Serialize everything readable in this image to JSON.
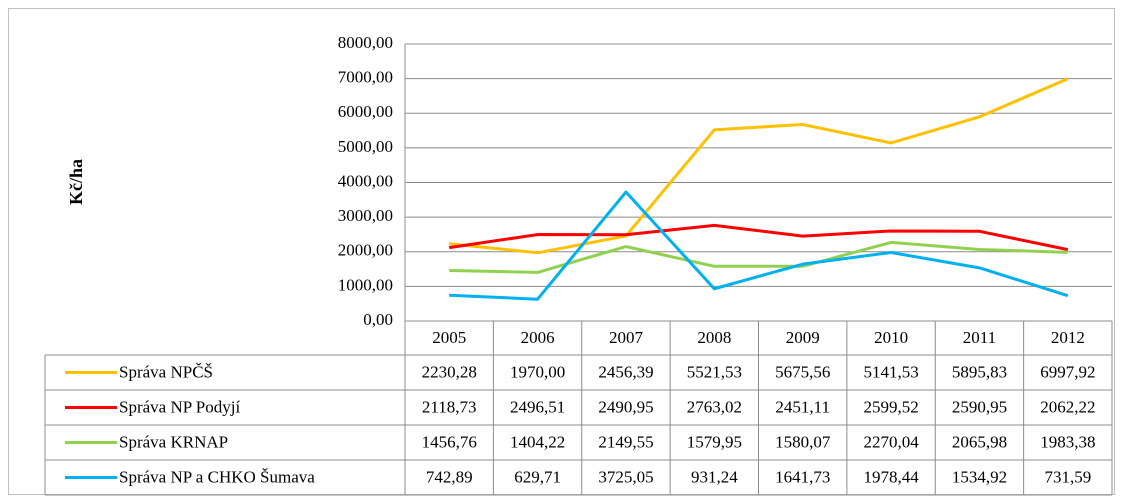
{
  "chart_data": {
    "type": "line",
    "y_label": "Kč/ha",
    "categories": [
      "2005",
      "2006",
      "2007",
      "2008",
      "2009",
      "2010",
      "2011",
      "2012"
    ],
    "series": [
      {
        "name": "Správa NPČŠ",
        "color": "#FFC000",
        "values": [
          2230.28,
          1970.0,
          2456.39,
          5521.53,
          5675.56,
          5141.53,
          5895.83,
          6997.92
        ],
        "value_labels": [
          "2230,28",
          "1970,00",
          "2456,39",
          "5521,53",
          "5675,56",
          "5141,53",
          "5895,83",
          "6997,92"
        ]
      },
      {
        "name": "Správa NP Podyjí",
        "color": "#FF0000",
        "values": [
          2118.73,
          2496.51,
          2490.95,
          2763.02,
          2451.11,
          2599.52,
          2590.95,
          2062.22
        ],
        "value_labels": [
          "2118,73",
          "2496,51",
          "2490,95",
          "2763,02",
          "2451,11",
          "2599,52",
          "2590,95",
          "2062,22"
        ]
      },
      {
        "name": "Správa KRNAP",
        "color": "#92D050",
        "values": [
          1456.76,
          1404.22,
          2149.55,
          1579.95,
          1580.07,
          2270.04,
          2065.98,
          1983.38
        ],
        "value_labels": [
          "1456,76",
          "1404,22",
          "2149,55",
          "1579,95",
          "1580,07",
          "2270,04",
          "2065,98",
          "1983,38"
        ]
      },
      {
        "name": "Správa NP a CHKO Šumava",
        "color": "#00B0F0",
        "values": [
          742.89,
          629.71,
          3725.05,
          931.24,
          1641.73,
          1978.44,
          1534.92,
          731.59
        ],
        "value_labels": [
          "742,89",
          "629,71",
          "3725,05",
          "931,24",
          "1641,73",
          "1978,44",
          "1534,92",
          "731,59"
        ]
      }
    ],
    "ylim": [
      0,
      8000
    ],
    "yticks": [
      {
        "value": 0,
        "label": "0,00"
      },
      {
        "value": 1000,
        "label": "1000,00"
      },
      {
        "value": 2000,
        "label": "2000,00"
      },
      {
        "value": 3000,
        "label": "3000,00"
      },
      {
        "value": 4000,
        "label": "4000,00"
      },
      {
        "value": 5000,
        "label": "5000,00"
      },
      {
        "value": 6000,
        "label": "6000,00"
      },
      {
        "value": 7000,
        "label": "7000,00"
      },
      {
        "value": 8000,
        "label": "8000,00"
      }
    ],
    "grid": true
  }
}
